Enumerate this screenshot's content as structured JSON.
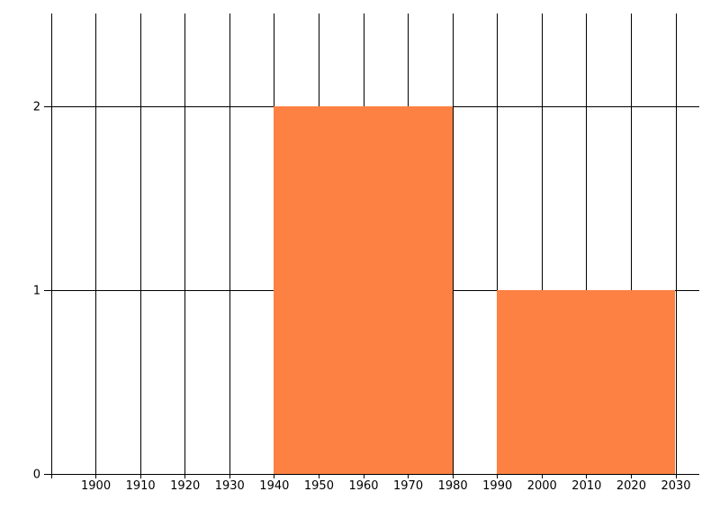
{
  "chart_data": {
    "type": "bar",
    "subtype": "histogram",
    "title": "",
    "xlabel": "",
    "ylabel": "",
    "grid": true,
    "legend": false,
    "xlim": [
      1888.5,
      2035.2
    ],
    "ylim": [
      0,
      2.51
    ],
    "x_gridline_years": [
      1890,
      1900,
      1910,
      1920,
      1930,
      1940,
      1950,
      1960,
      1970,
      1980,
      1990,
      2000,
      2010,
      2020,
      2030
    ],
    "x_tick_labels": [
      "1900",
      "1910",
      "1920",
      "1930",
      "1940",
      "1950",
      "1960",
      "1970",
      "1980",
      "1990",
      "2000",
      "2010",
      "2020",
      "2030"
    ],
    "y_tick_labels": [
      "0",
      "1",
      "2"
    ],
    "y_gridline_values": [
      1,
      2
    ],
    "bars": [
      {
        "x_start": 1940,
        "x_end": 1980,
        "value": 2
      },
      {
        "x_start": 1990,
        "x_end": 2030,
        "value": 1
      }
    ],
    "bar_color": "#fc8143",
    "line_color": "#000000",
    "text_color": "#000000",
    "background_color": "#ffffff"
  }
}
